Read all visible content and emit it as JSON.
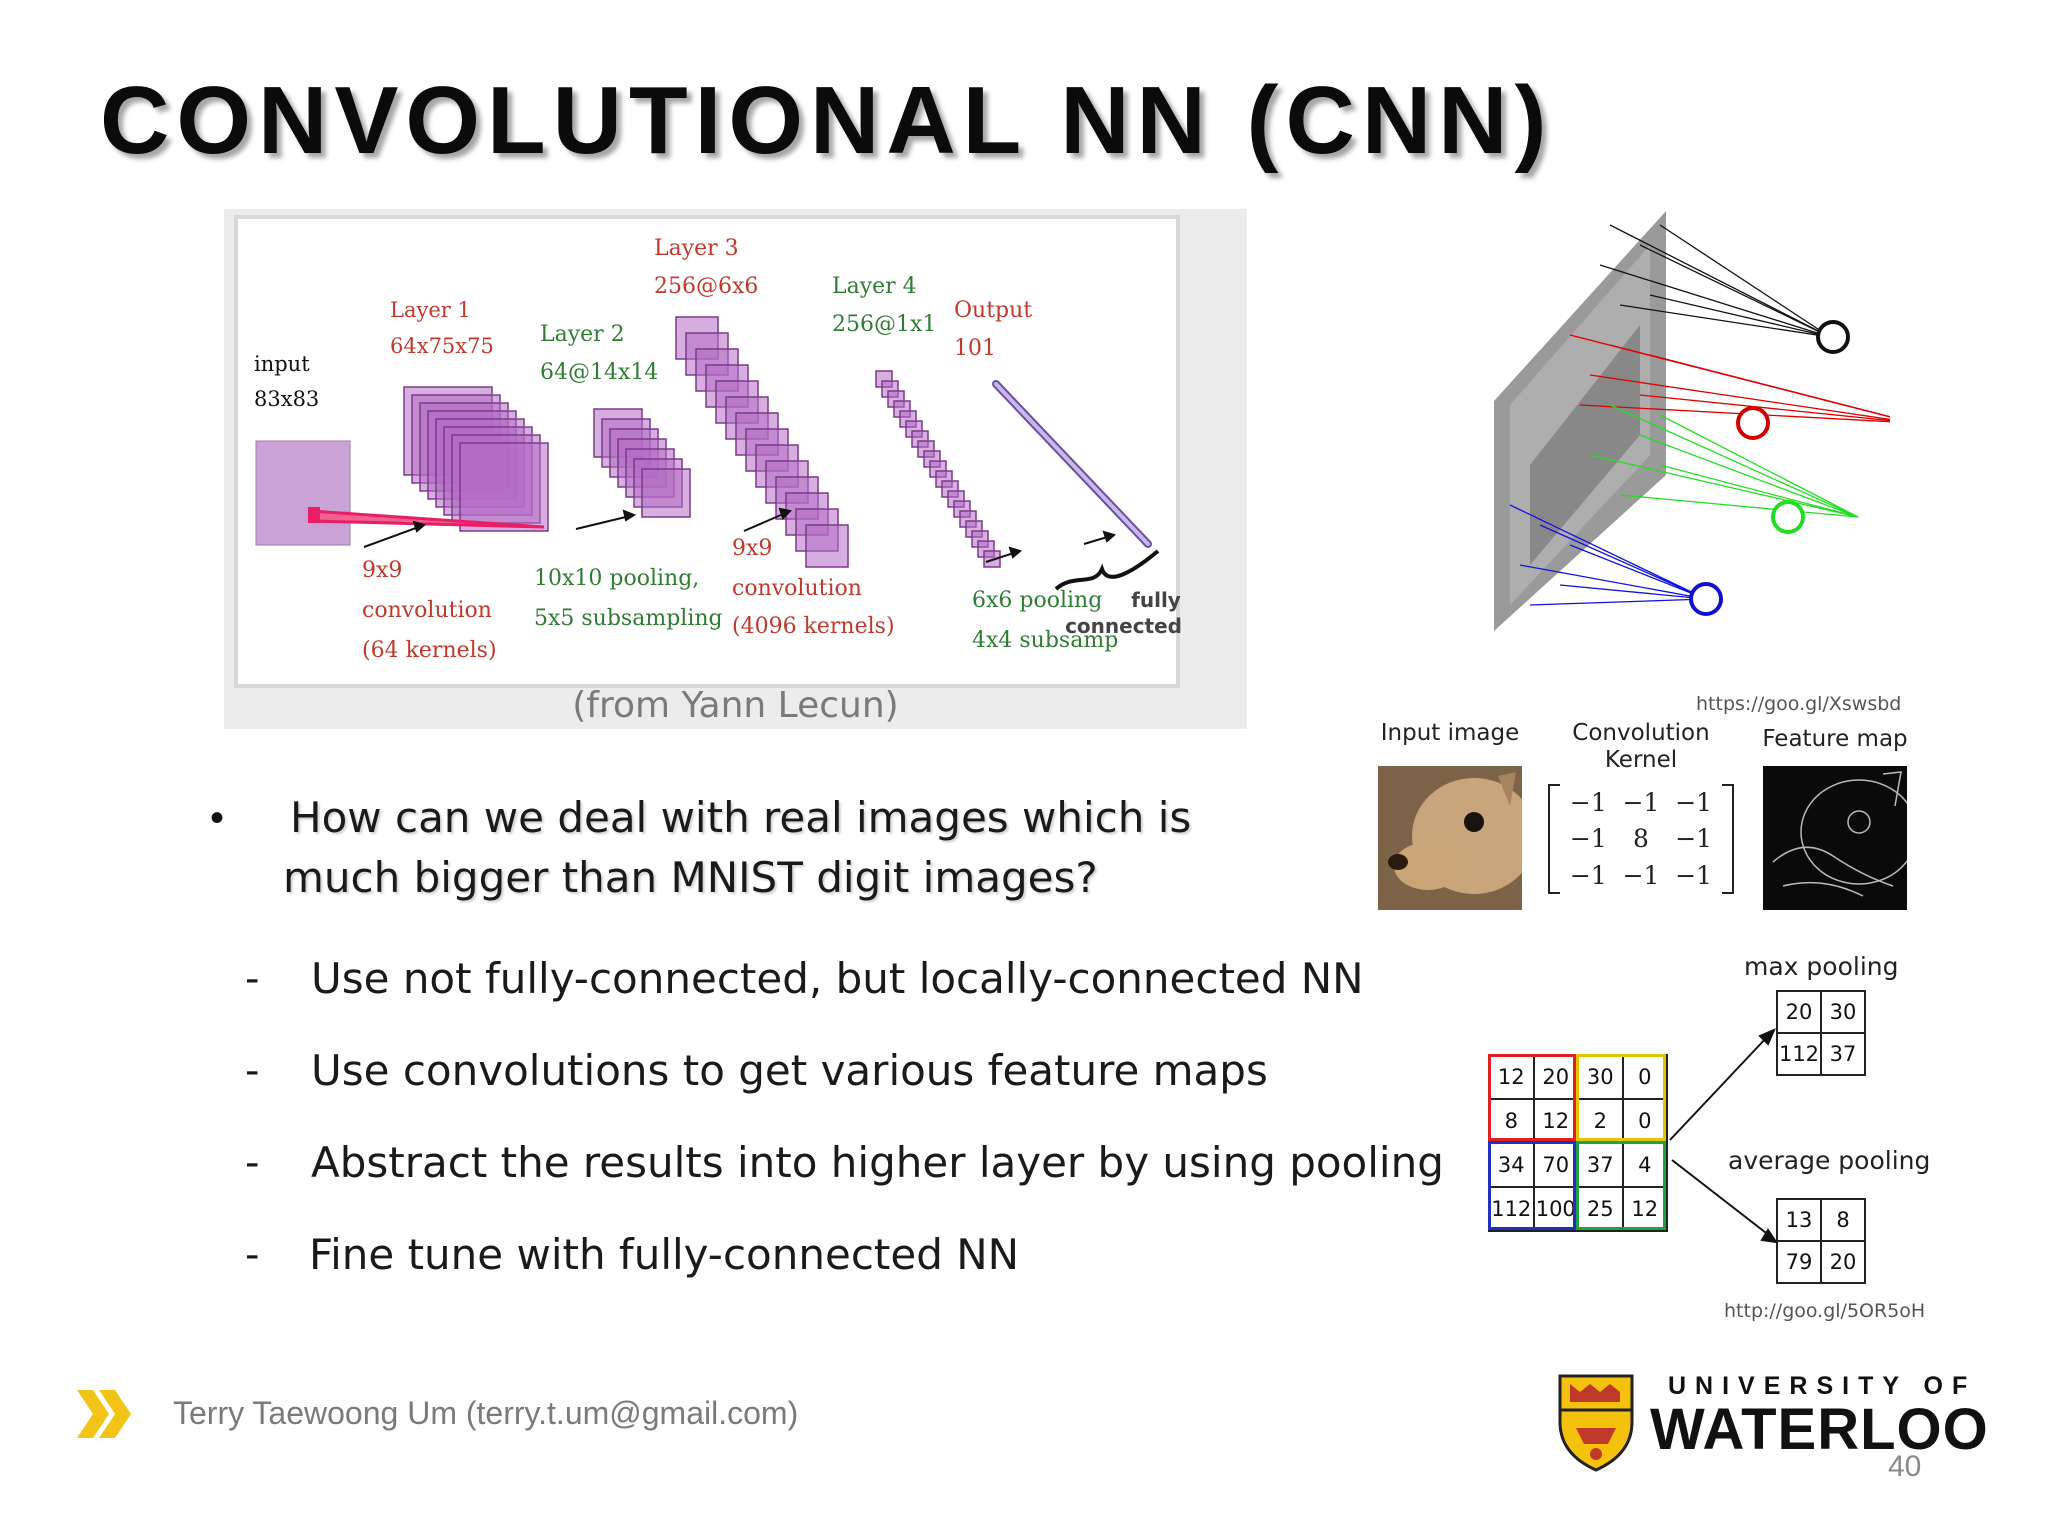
{
  "slide": {
    "title": "CONVOLUTIONAL NN (CNN)",
    "page_number": "40"
  },
  "lecun_figure": {
    "credit": "(from Yann Lecun)",
    "labels": {
      "input_title": "input",
      "input_size": "83x83",
      "layer1_title": "Layer 1",
      "layer1_size": "64x75x75",
      "layer2_title": "Layer 2",
      "layer2_size": "64@14x14",
      "layer3_title": "Layer 3",
      "layer3_size": "256@6x6",
      "layer4_title": "Layer 4",
      "layer4_size": "256@1x1",
      "output_title": "Output",
      "output_size": "101",
      "op1_a": "9x9",
      "op1_b": "convolution",
      "op1_c": "(64 kernels)",
      "op2_a": "10x10 pooling,",
      "op2_b": "5x5 subsampling",
      "op3_a": "9x9",
      "op3_b": "convolution",
      "op3_c": "(4096 kernels)",
      "op4_a": "6x6 pooling",
      "op4_b": "4x4 subsamp",
      "fc_a": "fully",
      "fc_b": "connected"
    },
    "colors": {
      "red_label": "#c0392b",
      "green_label": "#2e7d32",
      "feature_map": "#a855b5"
    }
  },
  "conv_panel": {
    "url": "https://goo.gl/Xswsbd",
    "input_label": "Input image",
    "kernel_label_1": "Convolution",
    "kernel_label_2": "Kernel",
    "feature_label": "Feature map",
    "kernel": [
      "−1",
      "−1",
      "−1",
      "−1",
      "8",
      "−1",
      "−1",
      "−1",
      "−1"
    ]
  },
  "pooling": {
    "max_title": "max pooling",
    "avg_title": "average pooling",
    "input_grid": [
      "12",
      "20",
      "30",
      "0",
      "8",
      "12",
      "2",
      "0",
      "34",
      "70",
      "37",
      "4",
      "112",
      "100",
      "25",
      "12"
    ],
    "max_grid": [
      "20",
      "30",
      "112",
      "37"
    ],
    "avg_grid": [
      "13",
      "8",
      "79",
      "20"
    ],
    "url": "http://goo.gl/5OR5oH"
  },
  "bullets": {
    "main_line1": "How can we deal with real images which is",
    "main_line2": "much bigger than MNIST digit images?",
    "bullet_symbol": "•",
    "dash": "-",
    "items": [
      "Use not fully-connected, but locally-connected NN",
      "Use convolutions to get various feature maps",
      "Abstract the results into higher layer by using pooling",
      "Fine tune with fully-connected NN"
    ]
  },
  "footer": {
    "author": "Terry Taewoong Um (terry.t.um@gmail.com)",
    "uni_top": "UNIVERSITY OF",
    "uni_bottom": "WATERLOO"
  }
}
